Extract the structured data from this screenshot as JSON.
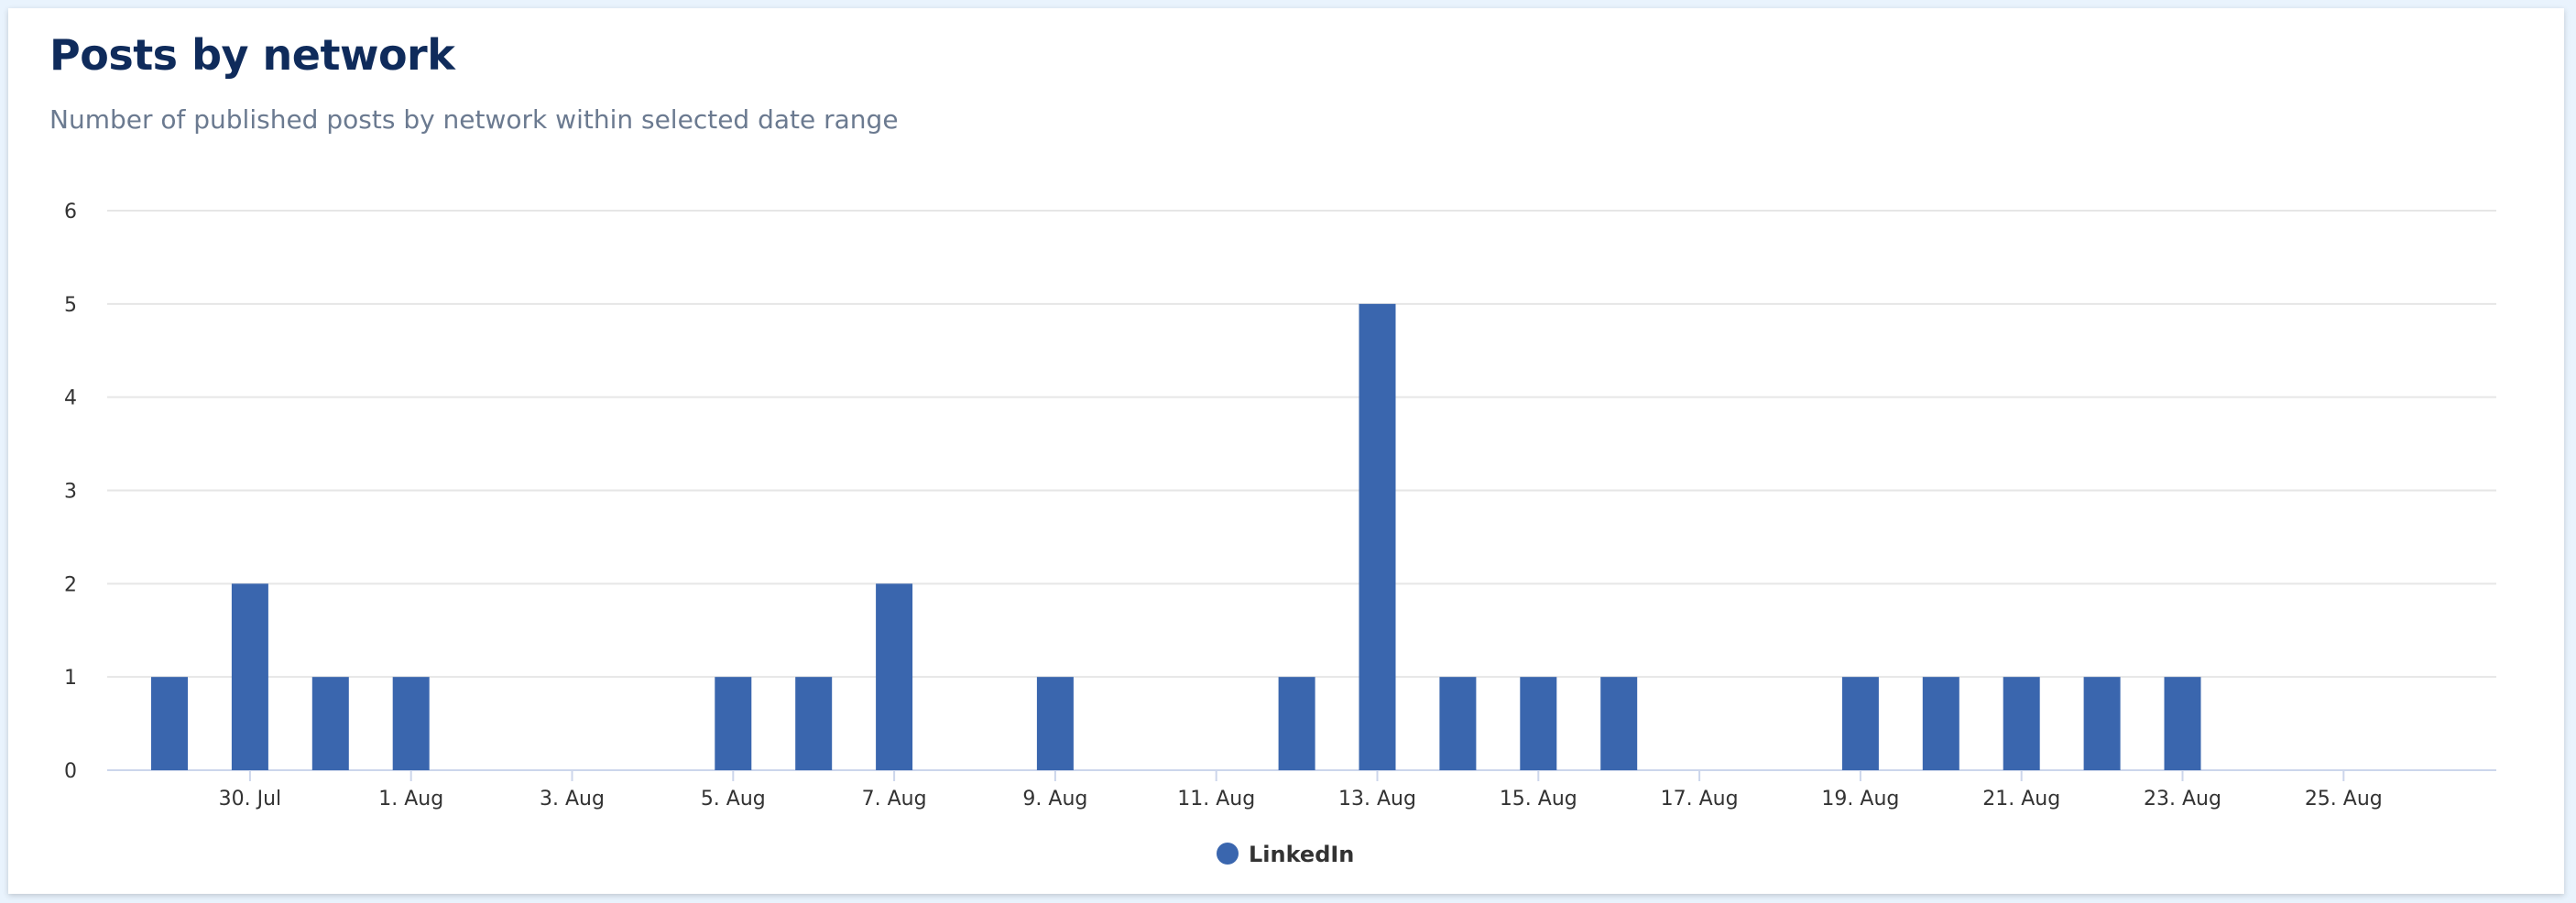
{
  "header": {
    "title": "Posts by network",
    "subtitle": "Number of published posts by network within selected date range"
  },
  "chart_data": {
    "type": "bar",
    "title": "Posts by network",
    "subtitle": "Number of published posts by network within selected date range",
    "xlabel": "",
    "ylabel": "",
    "ylim": [
      0,
      6
    ],
    "yticks": [
      0,
      1,
      2,
      3,
      4,
      5,
      6
    ],
    "grid": true,
    "legend_position": "bottom-center",
    "x_tick_labels": [
      "30. Jul",
      "1. Aug",
      "3. Aug",
      "5. Aug",
      "7. Aug",
      "9. Aug",
      "11. Aug",
      "13. Aug",
      "15. Aug",
      "17. Aug",
      "19. Aug",
      "21. Aug",
      "23. Aug",
      "25. Aug"
    ],
    "categories": [
      "29. Jul",
      "30. Jul",
      "31. Jul",
      "1. Aug",
      "2. Aug",
      "3. Aug",
      "4. Aug",
      "5. Aug",
      "6. Aug",
      "7. Aug",
      "8. Aug",
      "9. Aug",
      "10. Aug",
      "11. Aug",
      "12. Aug",
      "13. Aug",
      "14. Aug",
      "15. Aug",
      "16. Aug",
      "17. Aug",
      "18. Aug",
      "19. Aug",
      "20. Aug",
      "21. Aug",
      "22. Aug",
      "23. Aug",
      "24. Aug",
      "25. Aug",
      "26. Aug"
    ],
    "series": [
      {
        "name": "LinkedIn",
        "color": "#3a66ae",
        "values": [
          1,
          2,
          1,
          1,
          0,
          0,
          0,
          1,
          1,
          2,
          0,
          1,
          0,
          0,
          1,
          5,
          1,
          1,
          1,
          0,
          0,
          1,
          1,
          1,
          1,
          1,
          0,
          0,
          0
        ]
      }
    ]
  }
}
